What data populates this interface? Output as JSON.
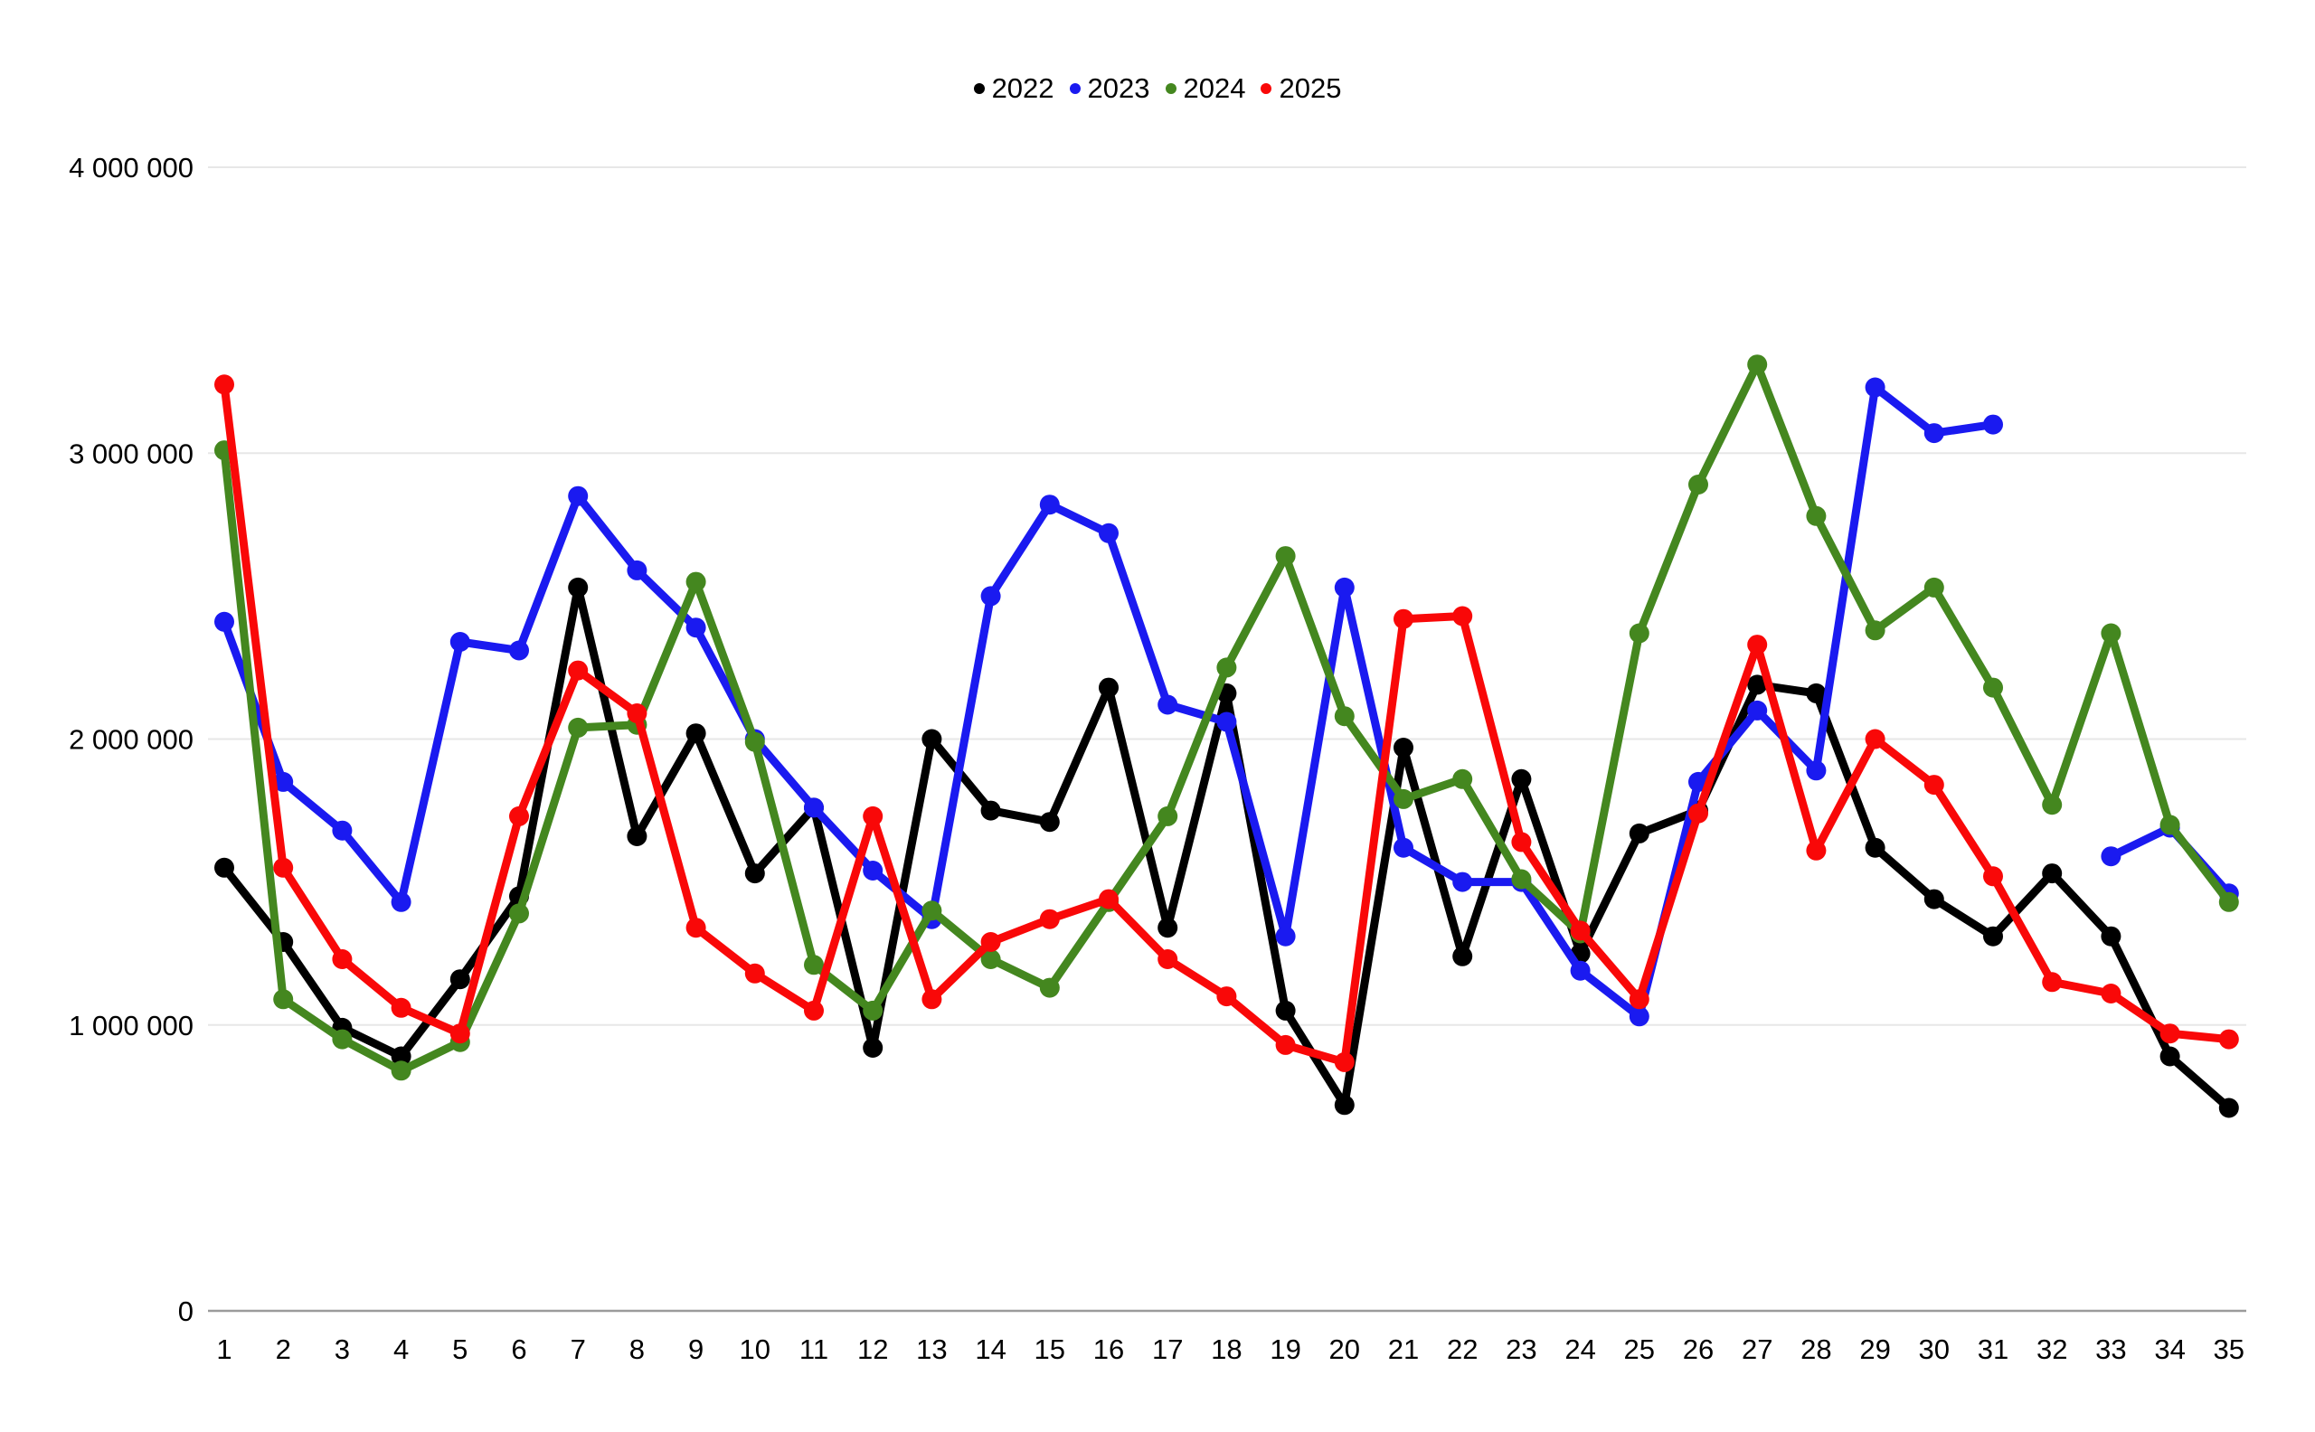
{
  "colors": {
    "background": "#ffffff",
    "gridline": "#e7e7e7",
    "axis_line": "#9b9b9b",
    "text": "#000000"
  },
  "legend": {
    "position": "top-center",
    "entries": [
      "2022",
      "2023",
      "2024",
      "2025"
    ]
  },
  "chart_data": {
    "type": "line",
    "title": "",
    "xlabel": "",
    "ylabel": "",
    "grid": true,
    "legend_position": "top",
    "marker": "circle",
    "x": [
      1,
      2,
      3,
      4,
      5,
      6,
      7,
      8,
      9,
      10,
      11,
      12,
      13,
      14,
      15,
      16,
      17,
      18,
      19,
      20,
      21,
      22,
      23,
      24,
      25,
      26,
      27,
      28,
      29,
      30,
      31,
      32,
      33,
      34,
      35
    ],
    "x_tick_labels": [
      "1",
      "2",
      "3",
      "4",
      "5",
      "6",
      "7",
      "8",
      "9",
      "10",
      "11",
      "12",
      "13",
      "14",
      "15",
      "16",
      "17",
      "18",
      "19",
      "20",
      "21",
      "22",
      "23",
      "24",
      "25",
      "26",
      "27",
      "28",
      "29",
      "30",
      "31",
      "32",
      "33",
      "34",
      "35"
    ],
    "y_axis": {
      "min": 0,
      "max": 4000000,
      "ticks": [
        {
          "value": 0,
          "label": "0"
        },
        {
          "value": 1000000,
          "label": "1 000 000"
        },
        {
          "value": 2000000,
          "label": "2 000 000"
        },
        {
          "value": 3000000,
          "label": "3 000 000"
        },
        {
          "value": 4000000,
          "label": "4 000 000"
        }
      ]
    },
    "series": [
      {
        "name": "2022",
        "color": "#000000",
        "values": [
          1550000,
          1290000,
          990000,
          890000,
          1160000,
          1450000,
          2530000,
          1660000,
          2020000,
          1530000,
          1760000,
          920000,
          2000000,
          1750000,
          1710000,
          2180000,
          1340000,
          2160000,
          1050000,
          720000,
          1970000,
          1240000,
          1860000,
          1250000,
          1670000,
          1750000,
          2190000,
          2160000,
          1620000,
          1440000,
          1310000,
          1530000,
          1310000,
          890000,
          710000
        ]
      },
      {
        "name": "2023",
        "color": "#1a1af0",
        "values": [
          2410000,
          1850000,
          1680000,
          1430000,
          2340000,
          2310000,
          2850000,
          2590000,
          2390000,
          2000000,
          1760000,
          1540000,
          1370000,
          2500000,
          2820000,
          2720000,
          2120000,
          2060000,
          1310000,
          2530000,
          1620000,
          1500000,
          1500000,
          1190000,
          1030000,
          1850000,
          2100000,
          1890000,
          3230000,
          3070000,
          3100000,
          null,
          1590000,
          1690000,
          1460000
        ]
      },
      {
        "name": "2024",
        "color": "#44871f",
        "values": [
          3010000,
          1090000,
          950000,
          840000,
          940000,
          1390000,
          2040000,
          2050000,
          2550000,
          1990000,
          1210000,
          1050000,
          1400000,
          1230000,
          1130000,
          1430000,
          1730000,
          2250000,
          2640000,
          2080000,
          1790000,
          1860000,
          1510000,
          1320000,
          2370000,
          2890000,
          3310000,
          2780000,
          2380000,
          2530000,
          2180000,
          1770000,
          2370000,
          1700000,
          1430000
        ]
      },
      {
        "name": "2025",
        "color": "#f90808",
        "values": [
          3240000,
          1550000,
          1230000,
          1060000,
          970000,
          1730000,
          2240000,
          2090000,
          1340000,
          1180000,
          1050000,
          1730000,
          1090000,
          1290000,
          1370000,
          1440000,
          1230000,
          1100000,
          930000,
          870000,
          2420000,
          2430000,
          1640000,
          1330000,
          1090000,
          1740000,
          2330000,
          1610000,
          2000000,
          1840000,
          1520000,
          1150000,
          1110000,
          970000,
          950000
        ]
      }
    ]
  }
}
